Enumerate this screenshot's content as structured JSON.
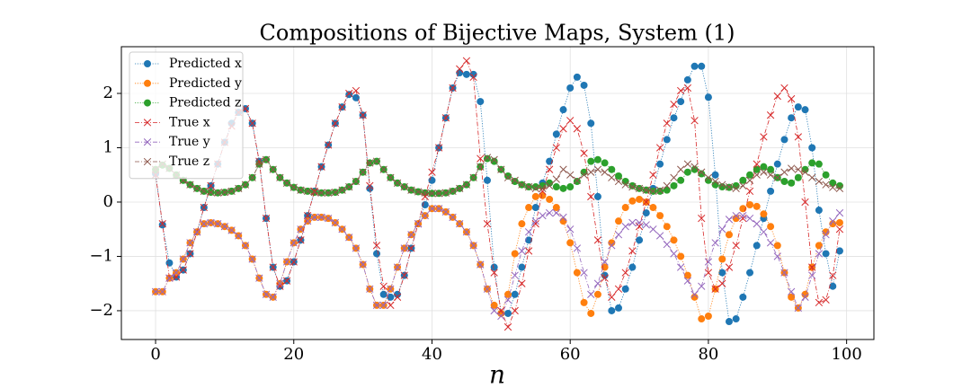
{
  "chart_data": {
    "type": "line",
    "title": "Compositions of Bijective Maps, System (1)",
    "x_label": "n",
    "grid": true,
    "legend": "upper left",
    "xlim": [
      -4.95,
      103.95
    ],
    "xticks": [
      0,
      20,
      40,
      60,
      80,
      100
    ],
    "ylim": [
      -2.53,
      2.86
    ],
    "yticks": [
      {
        "value": -2,
        "label": "−2"
      },
      {
        "value": -1,
        "label": "−1"
      },
      0,
      1,
      2
    ],
    "x": [
      0,
      1,
      2,
      3,
      4,
      5,
      6,
      7,
      8,
      9,
      10,
      11,
      12,
      13,
      14,
      15,
      16,
      17,
      18,
      19,
      20,
      21,
      22,
      23,
      24,
      25,
      26,
      27,
      28,
      29,
      30,
      31,
      32,
      33,
      34,
      35,
      36,
      37,
      38,
      39,
      40,
      41,
      42,
      43,
      44,
      45,
      46,
      47,
      48,
      49,
      50,
      51,
      52,
      53,
      54,
      55,
      56,
      57,
      58,
      59,
      60,
      61,
      62,
      63,
      64,
      65,
      66,
      67,
      68,
      69,
      70,
      71,
      72,
      73,
      74,
      75,
      76,
      77,
      78,
      79,
      80,
      81,
      82,
      83,
      84,
      85,
      86,
      87,
      88,
      89,
      90,
      91,
      92,
      93,
      94,
      95,
      96,
      97,
      98,
      99
    ],
    "series": [
      {
        "name": "Predicted x",
        "color": "#1f77b4",
        "marker": "o",
        "linestyle": "dotted",
        "values": [
          0.52,
          -0.42,
          -1.12,
          -1.38,
          -1.25,
          -0.95,
          -0.55,
          -0.1,
          0.3,
          0.7,
          1.1,
          1.45,
          1.65,
          1.72,
          1.45,
          0.75,
          -0.3,
          -1.2,
          -1.55,
          -1.45,
          -1.1,
          -0.7,
          -0.25,
          0.2,
          0.65,
          1.05,
          1.45,
          1.75,
          1.98,
          1.92,
          1.6,
          0.25,
          -0.95,
          -1.7,
          -1.75,
          -1.7,
          -1.35,
          -0.85,
          -0.4,
          -0.05,
          0.4,
          1.0,
          1.55,
          2.1,
          2.38,
          2.35,
          2.35,
          1.85,
          0.4,
          -1.2,
          -2.05,
          -2.05,
          -1.7,
          -1.2,
          -0.7,
          -0.1,
          0.35,
          0.75,
          1.25,
          1.7,
          2.1,
          2.3,
          2.15,
          1.45,
          0.1,
          -1.35,
          -2.0,
          -1.95,
          -1.6,
          -1.2,
          -0.7,
          -0.2,
          0.25,
          0.7,
          1.15,
          1.55,
          1.85,
          2.25,
          2.5,
          2.5,
          1.93,
          0.5,
          -1.3,
          -2.2,
          -2.15,
          -1.75,
          -1.3,
          -0.8,
          -0.3,
          0.2,
          0.7,
          1.15,
          1.55,
          1.75,
          1.7,
          1.0,
          -0.15,
          -0.95,
          -1.55,
          -0.9
        ]
      },
      {
        "name": "Predicted y",
        "color": "#ff7f0e",
        "marker": "o",
        "linestyle": "dotted",
        "values": [
          -1.65,
          -1.65,
          -1.4,
          -1.3,
          -1.05,
          -0.75,
          -0.55,
          -0.4,
          -0.38,
          -0.4,
          -0.45,
          -0.52,
          -0.62,
          -0.8,
          -1.05,
          -1.4,
          -1.7,
          -1.75,
          -1.5,
          -1.1,
          -0.75,
          -0.5,
          -0.35,
          -0.28,
          -0.28,
          -0.3,
          -0.38,
          -0.5,
          -0.65,
          -0.85,
          -1.15,
          -1.6,
          -1.9,
          -1.9,
          -1.6,
          -1.2,
          -0.85,
          -0.6,
          -0.4,
          -0.25,
          -0.12,
          -0.12,
          -0.18,
          -0.28,
          -0.4,
          -0.55,
          -0.8,
          -1.15,
          -1.6,
          -1.9,
          -2.05,
          -1.7,
          -0.95,
          -0.4,
          -0.1,
          0.1,
          0.12,
          0.05,
          -0.1,
          -0.35,
          -0.75,
          -1.3,
          -1.85,
          -2.05,
          -1.7,
          -1.2,
          -0.75,
          -0.35,
          -0.1,
          0.02,
          0.05,
          0.0,
          -0.1,
          -0.25,
          -0.45,
          -0.7,
          -1.0,
          -1.35,
          -1.75,
          -2.15,
          -2.1,
          -1.6,
          -1.05,
          -0.6,
          -0.3,
          -0.12,
          -0.05,
          -0.08,
          -0.22,
          -0.45,
          -0.8,
          -1.3,
          -1.75,
          -1.95,
          -1.7,
          -1.2,
          -0.8,
          -0.55,
          -0.4,
          -0.38
        ]
      },
      {
        "name": "Predicted z",
        "color": "#2ca02c",
        "marker": "o",
        "linestyle": "dotted",
        "values": [
          0.6,
          0.68,
          0.62,
          0.5,
          0.4,
          0.32,
          0.25,
          0.2,
          0.18,
          0.17,
          0.18,
          0.2,
          0.25,
          0.32,
          0.45,
          0.7,
          0.78,
          0.6,
          0.45,
          0.35,
          0.27,
          0.22,
          0.2,
          0.18,
          0.17,
          0.17,
          0.18,
          0.22,
          0.28,
          0.38,
          0.55,
          0.72,
          0.75,
          0.6,
          0.45,
          0.35,
          0.28,
          0.22,
          0.19,
          0.17,
          0.16,
          0.16,
          0.17,
          0.2,
          0.25,
          0.32,
          0.45,
          0.65,
          0.8,
          0.75,
          0.6,
          0.48,
          0.38,
          0.32,
          0.28,
          0.28,
          0.3,
          0.35,
          0.28,
          0.25,
          0.28,
          0.38,
          0.55,
          0.75,
          0.78,
          0.72,
          0.6,
          0.48,
          0.38,
          0.3,
          0.25,
          0.22,
          0.2,
          0.2,
          0.22,
          0.3,
          0.4,
          0.55,
          0.6,
          0.52,
          0.4,
          0.32,
          0.28,
          0.27,
          0.3,
          0.4,
          0.5,
          0.6,
          0.65,
          0.6,
          0.45,
          0.38,
          0.35,
          0.45,
          0.6,
          0.72,
          0.7,
          0.5,
          0.35,
          0.3
        ]
      },
      {
        "name": "True x",
        "color": "#d62728",
        "marker": "x",
        "linestyle": "dashdot",
        "values": [
          0.5,
          -0.4,
          -1.4,
          -1.38,
          -1.25,
          -0.95,
          -0.55,
          -0.1,
          0.3,
          0.7,
          1.1,
          1.4,
          1.65,
          1.72,
          1.45,
          0.75,
          -0.3,
          -1.2,
          -1.55,
          -1.45,
          -1.1,
          -0.7,
          -0.25,
          0.2,
          0.65,
          1.05,
          1.45,
          1.75,
          2.0,
          2.05,
          1.6,
          0.3,
          -0.8,
          -1.55,
          -1.9,
          -1.75,
          -1.35,
          -0.85,
          -0.4,
          0.1,
          0.55,
          1.0,
          1.55,
          2.1,
          2.45,
          2.6,
          2.3,
          0.8,
          -0.4,
          -1.3,
          -2.0,
          -2.3,
          -2.0,
          -1.5,
          -0.9,
          -0.4,
          0.2,
          0.6,
          1.0,
          1.35,
          1.5,
          1.35,
          0.9,
          0.1,
          -0.7,
          -1.4,
          -1.75,
          -1.6,
          -1.3,
          -0.9,
          -0.45,
          0.0,
          0.5,
          1.0,
          1.45,
          1.8,
          2.05,
          2.1,
          1.5,
          -0.3,
          -1.3,
          -1.6,
          -1.5,
          -1.2,
          -0.8,
          -0.3,
          0.2,
          0.7,
          1.2,
          1.6,
          1.95,
          2.1,
          1.9,
          1.2,
          0.0,
          -1.2,
          -1.85,
          -1.8,
          -1.35,
          -0.5
        ]
      },
      {
        "name": "True y",
        "color": "#9467bd",
        "marker": "x",
        "linestyle": "dashdot",
        "values": [
          -1.65,
          -1.65,
          -1.4,
          -1.3,
          -1.05,
          -0.75,
          -0.55,
          -0.4,
          -0.38,
          -0.4,
          -0.45,
          -0.52,
          -0.62,
          -0.8,
          -1.05,
          -1.4,
          -1.7,
          -1.75,
          -1.5,
          -1.1,
          -0.75,
          -0.5,
          -0.35,
          -0.28,
          -0.28,
          -0.3,
          -0.38,
          -0.5,
          -0.65,
          -0.85,
          -1.15,
          -1.6,
          -1.9,
          -1.9,
          -1.6,
          -1.2,
          -0.85,
          -0.6,
          -0.4,
          -0.25,
          -0.12,
          -0.12,
          -0.18,
          -0.28,
          -0.4,
          -0.55,
          -0.8,
          -1.15,
          -1.6,
          -2.0,
          -2.1,
          -1.8,
          -1.35,
          -0.9,
          -0.55,
          -0.35,
          -0.25,
          -0.2,
          -0.2,
          -0.28,
          -0.5,
          -0.85,
          -1.3,
          -1.7,
          -1.5,
          -1.1,
          -0.8,
          -0.6,
          -0.45,
          -0.38,
          -0.38,
          -0.42,
          -0.5,
          -0.62,
          -0.78,
          -0.95,
          -1.2,
          -1.45,
          -1.7,
          -1.55,
          -1.1,
          -0.75,
          -0.5,
          -0.32,
          -0.25,
          -0.25,
          -0.3,
          -0.4,
          -0.55,
          -0.75,
          -1.0,
          -1.3,
          -1.65,
          -1.95,
          -1.75,
          -1.35,
          -0.95,
          -0.6,
          -0.35,
          -0.2
        ]
      },
      {
        "name": "True z",
        "color": "#8c564b",
        "marker": "x",
        "linestyle": "dashdot",
        "values": [
          0.6,
          0.7,
          0.62,
          0.5,
          0.4,
          0.32,
          0.25,
          0.2,
          0.18,
          0.17,
          0.18,
          0.2,
          0.25,
          0.32,
          0.45,
          0.7,
          0.78,
          0.6,
          0.45,
          0.35,
          0.27,
          0.22,
          0.2,
          0.18,
          0.17,
          0.17,
          0.18,
          0.22,
          0.28,
          0.38,
          0.55,
          0.72,
          0.75,
          0.6,
          0.45,
          0.35,
          0.28,
          0.22,
          0.19,
          0.17,
          0.16,
          0.16,
          0.17,
          0.2,
          0.25,
          0.32,
          0.45,
          0.65,
          0.82,
          0.78,
          0.6,
          0.45,
          0.4,
          0.32,
          0.28,
          0.25,
          0.25,
          0.3,
          0.42,
          0.6,
          0.5,
          0.4,
          0.5,
          0.55,
          0.6,
          0.55,
          0.45,
          0.38,
          0.32,
          0.28,
          0.25,
          0.22,
          0.2,
          0.22,
          0.3,
          0.45,
          0.6,
          0.7,
          0.65,
          0.55,
          0.45,
          0.38,
          0.32,
          0.28,
          0.25,
          0.3,
          0.4,
          0.5,
          0.55,
          0.5,
          0.45,
          0.55,
          0.62,
          0.6,
          0.55,
          0.45,
          0.38,
          0.32,
          0.27,
          0.25
        ]
      }
    ]
  }
}
